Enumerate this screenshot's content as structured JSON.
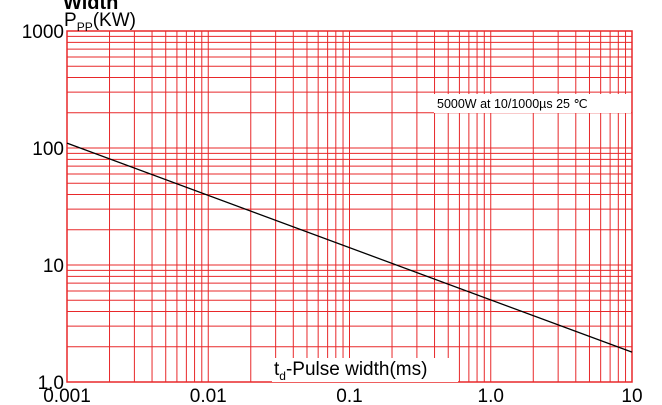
{
  "chart_data": {
    "type": "line",
    "title": "Width",
    "ylabel_main": "P",
    "ylabel_sub": "PP",
    "ylabel_unit": "(KW)",
    "xlabel_main": "t",
    "xlabel_sub": "d",
    "xlabel_rest": "-Pulse width(ms)",
    "annotation": "5000W at 10/1000µs 25 ℃",
    "x_scale": "log",
    "y_scale": "log",
    "xlim": [
      0.001,
      10
    ],
    "ylim": [
      1.0,
      1000
    ],
    "x_ticks": [
      {
        "value": 0.001,
        "label": "0.001"
      },
      {
        "value": 0.01,
        "label": "0.01"
      },
      {
        "value": 0.1,
        "label": "0.1"
      },
      {
        "value": 1.0,
        "label": "1.0"
      },
      {
        "value": 10,
        "label": "10"
      }
    ],
    "y_ticks": [
      {
        "value": 1.0,
        "label": "1.0"
      },
      {
        "value": 10,
        "label": "10"
      },
      {
        "value": 100,
        "label": "100"
      },
      {
        "value": 1000,
        "label": "1000"
      }
    ],
    "grid": true,
    "grid_color": "#e8282a",
    "line_color": "#000000",
    "series": [
      {
        "x": [
          0.001,
          10
        ],
        "y": [
          110,
          1.8
        ]
      }
    ]
  }
}
